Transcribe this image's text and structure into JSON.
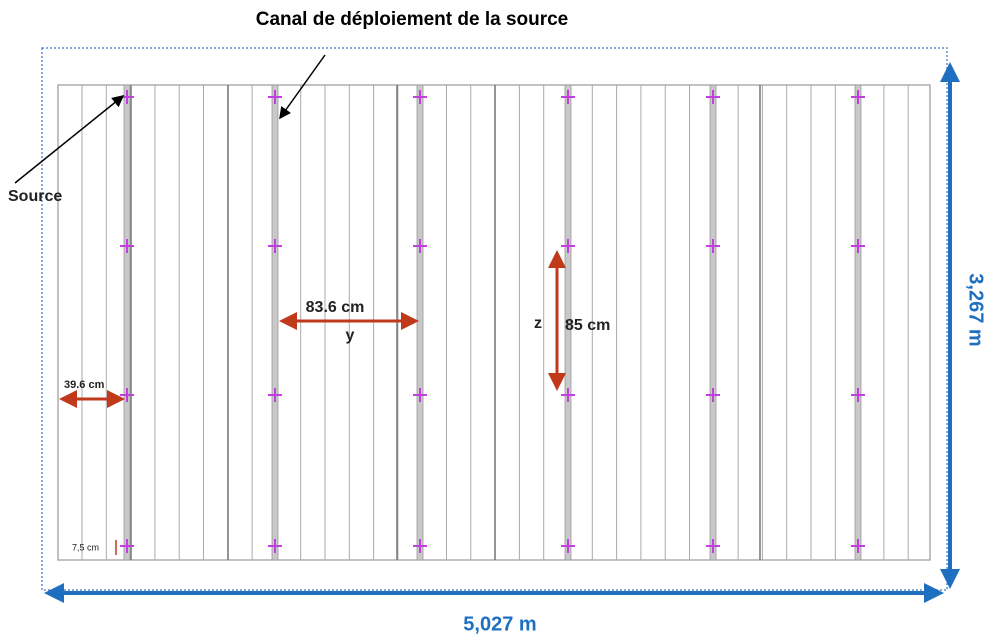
{
  "title": "Canal de déploiement de la source",
  "labels": {
    "source": "Source",
    "spacing_y": "83.6 cm",
    "y": "y",
    "z": "z",
    "spacing_z": "85 cm",
    "edge": "39.6 cm",
    "bottom": "7,5 cm",
    "width": "5,027 m",
    "height": "3,267 m"
  }
}
